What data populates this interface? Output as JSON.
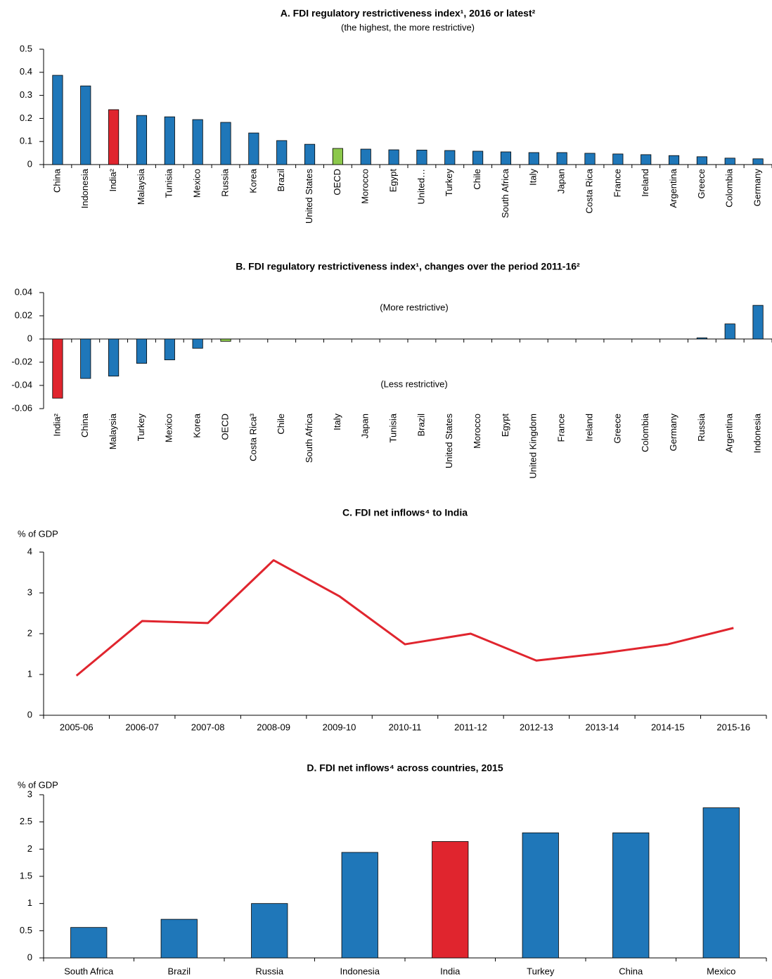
{
  "chart_data": [
    {
      "type": "bar",
      "title": "A. FDI regulatory restrictiveness index¹, 2016 or latest²",
      "subtitle": "(the highest, the more restrictive)",
      "categories": [
        "China",
        "Indonesia",
        "India²",
        "Malaysia",
        "Tunisia",
        "Mexico",
        "Russia",
        "Korea",
        "Brazil",
        "United States",
        "OECD",
        "Morocco",
        "Egypt",
        "United…",
        "Turkey",
        "Chile",
        "South Africa",
        "Italy",
        "Japan",
        "Costa Rica",
        "France",
        "Ireland",
        "Argentina",
        "Greece",
        "Colombia",
        "Germany"
      ],
      "values": [
        0.387,
        0.341,
        0.238,
        0.213,
        0.207,
        0.195,
        0.183,
        0.137,
        0.104,
        0.088,
        0.07,
        0.067,
        0.064,
        0.063,
        0.061,
        0.058,
        0.055,
        0.052,
        0.052,
        0.049,
        0.046,
        0.043,
        0.039,
        0.034,
        0.028,
        0.025
      ],
      "colors": [
        "#1f77b9",
        "#1f77b9",
        "#e0252e",
        "#1f77b9",
        "#1f77b9",
        "#1f77b9",
        "#1f77b9",
        "#1f77b9",
        "#1f77b9",
        "#1f77b9",
        "#8cc84b",
        "#1f77b9",
        "#1f77b9",
        "#1f77b9",
        "#1f77b9",
        "#1f77b9",
        "#1f77b9",
        "#1f77b9",
        "#1f77b9",
        "#1f77b9",
        "#1f77b9",
        "#1f77b9",
        "#1f77b9",
        "#1f77b9",
        "#1f77b9",
        "#1f77b9"
      ],
      "ylim": [
        0,
        0.5
      ],
      "yticks": [
        0,
        0.1,
        0.2,
        0.3,
        0.4,
        0.5
      ]
    },
    {
      "type": "bar",
      "title": "B. FDI regulatory restrictiveness index¹, changes over the period 2011-16²",
      "annotations": [
        "(More restrictive)",
        "(Less restrictive)"
      ],
      "categories": [
        "India²",
        "China",
        "Malaysia",
        "Turkey",
        "Mexico",
        "Korea",
        "OECD",
        "Costa Rica³",
        "Chile",
        "South Africa",
        "Italy",
        "Japan",
        "Tunisia",
        "Brazil",
        "United States",
        "Morocco",
        "Egypt",
        "United Kingdom",
        "France",
        "Ireland",
        "Greece",
        "Colombia",
        "Germany",
        "Russia",
        "Argentina",
        "Indonesia"
      ],
      "values": [
        -0.051,
        -0.034,
        -0.032,
        -0.021,
        -0.018,
        -0.008,
        -0.002,
        0,
        0,
        0,
        0,
        0,
        0,
        0,
        0,
        0,
        0,
        0,
        0,
        0,
        0,
        0,
        0,
        0.001,
        0.013,
        0.029
      ],
      "colors": [
        "#e0252e",
        "#1f77b9",
        "#1f77b9",
        "#1f77b9",
        "#1f77b9",
        "#1f77b9",
        "#8cc84b",
        "#1f77b9",
        "#1f77b9",
        "#1f77b9",
        "#1f77b9",
        "#1f77b9",
        "#1f77b9",
        "#1f77b9",
        "#1f77b9",
        "#1f77b9",
        "#1f77b9",
        "#1f77b9",
        "#1f77b9",
        "#1f77b9",
        "#1f77b9",
        "#1f77b9",
        "#1f77b9",
        "#1f77b9",
        "#1f77b9",
        "#1f77b9"
      ],
      "ylim": [
        -0.06,
        0.04
      ],
      "yticks": [
        -0.06,
        -0.04,
        -0.02,
        0,
        0.02,
        0.04
      ]
    },
    {
      "type": "line",
      "title": "C. FDI net inflows⁴ to India",
      "ylabel": "% of GDP",
      "categories": [
        "2005-06",
        "2006-07",
        "2007-08",
        "2008-09",
        "2009-10",
        "2010-11",
        "2011-12",
        "2012-13",
        "2013-14",
        "2014-15",
        "2015-16"
      ],
      "values": [
        0.97,
        2.31,
        2.26,
        3.8,
        2.92,
        1.74,
        2.0,
        1.34,
        1.52,
        1.74,
        2.14
      ],
      "color": "#e0252e",
      "ylim": [
        0,
        4
      ],
      "yticks": [
        0,
        1,
        2,
        3,
        4
      ]
    },
    {
      "type": "bar",
      "title": "D. FDI net inflows⁴ across countries, 2015",
      "ylabel": "% of GDP",
      "categories": [
        "South Africa",
        "Brazil",
        "Russia",
        "Indonesia",
        "India",
        "Turkey",
        "China",
        "Mexico"
      ],
      "values": [
        0.56,
        0.71,
        1.0,
        1.94,
        2.14,
        2.3,
        2.3,
        2.76
      ],
      "colors": [
        "#1f77b9",
        "#1f77b9",
        "#1f77b9",
        "#1f77b9",
        "#e0252e",
        "#1f77b9",
        "#1f77b9",
        "#1f77b9"
      ],
      "ylim": [
        0,
        3
      ],
      "yticks": [
        0,
        0.5,
        1,
        1.5,
        2,
        2.5,
        3
      ]
    }
  ]
}
